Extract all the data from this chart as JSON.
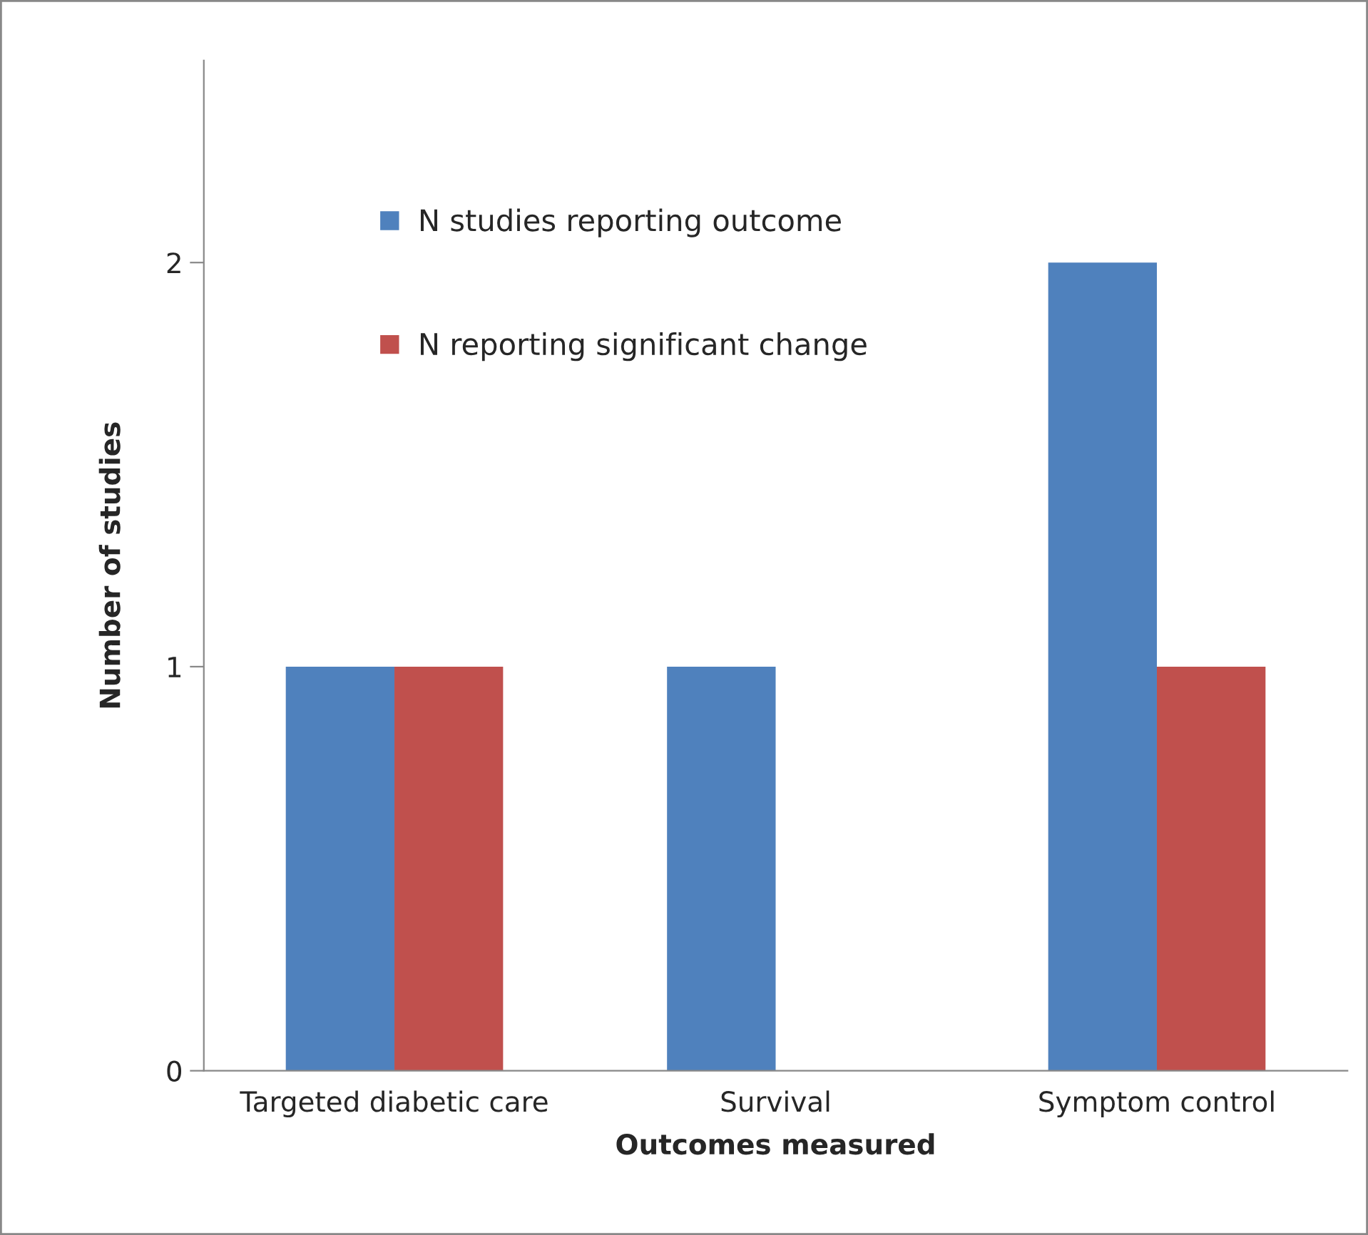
{
  "chart_data": {
    "type": "bar",
    "xlabel": "Outcomes measured",
    "ylabel": "Number of studies",
    "categories": [
      "Targeted diabetic care",
      "Survival",
      "Symptom control"
    ],
    "series": [
      {
        "name": "N studies reporting outcome",
        "color": "#4f81bd",
        "values": [
          1,
          1,
          2
        ]
      },
      {
        "name": "N reporting significant change",
        "color": "#c0504d",
        "values": [
          1,
          0,
          1
        ]
      }
    ],
    "ylim": [
      0,
      2.5
    ],
    "yticks": [
      0,
      1,
      2
    ],
    "grid": false,
    "legend": "top left"
  }
}
